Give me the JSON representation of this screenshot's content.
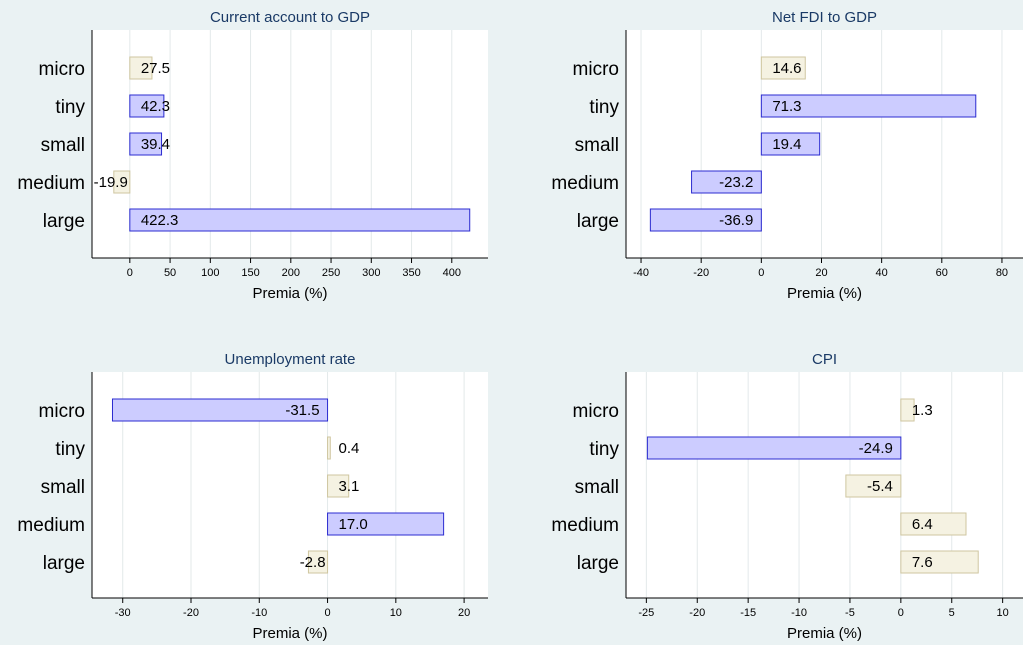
{
  "colors": {
    "background": "#eaf2f3",
    "plot_background": "#ffffff",
    "significant_fill": "#ccccff",
    "significant_stroke": "#2b2bd0",
    "insignificant_fill": "#f5f2e2",
    "insignificant_stroke": "#cfc6a0",
    "title": "#1a3a66"
  },
  "chart_data": [
    {
      "type": "bar",
      "orientation": "horizontal",
      "title": "Current account to GDP",
      "xlabel": "Premia (%)",
      "categories": [
        "micro",
        "tiny",
        "small",
        "medium",
        "large"
      ],
      "values": [
        27.5,
        42.3,
        39.4,
        -19.9,
        422.3
      ],
      "value_labels": [
        "27.5",
        "42.3",
        "39.4",
        "-19.9",
        "422.3"
      ],
      "significant": [
        false,
        true,
        true,
        false,
        true
      ],
      "xlim": [
        -47,
        445
      ],
      "xticks": [
        0,
        50,
        100,
        150,
        200,
        250,
        300,
        350,
        400
      ],
      "xtick_labels": [
        "0",
        "50",
        "100",
        "150",
        "200",
        "250",
        "300",
        "350",
        "400"
      ],
      "grid": true
    },
    {
      "type": "bar",
      "orientation": "horizontal",
      "title": "Net FDI to GDP",
      "xlabel": "Premia (%)",
      "categories": [
        "micro",
        "tiny",
        "small",
        "medium",
        "large"
      ],
      "values": [
        14.6,
        71.3,
        19.4,
        -23.2,
        -36.9
      ],
      "value_labels": [
        "14.6",
        "71.3",
        "19.4",
        "-23.2",
        "-36.9"
      ],
      "significant": [
        false,
        true,
        true,
        true,
        true
      ],
      "xlim": [
        -45,
        87
      ],
      "xticks": [
        -40,
        -20,
        0,
        20,
        40,
        60,
        80
      ],
      "xtick_labels": [
        "-40",
        "-20",
        "0",
        "20",
        "40",
        "60",
        "80"
      ],
      "grid": true
    },
    {
      "type": "bar",
      "orientation": "horizontal",
      "title": "Unemployment rate",
      "xlabel": "Premia (%)",
      "categories": [
        "micro",
        "tiny",
        "small",
        "medium",
        "large"
      ],
      "values": [
        -31.5,
        0.4,
        3.1,
        17.0,
        -2.8
      ],
      "value_labels": [
        "-31.5",
        "0.4",
        "3.1",
        "17.0",
        "-2.8"
      ],
      "significant": [
        true,
        false,
        false,
        true,
        false
      ],
      "xlim": [
        -34.5,
        23.5
      ],
      "xticks": [
        -30,
        -20,
        -10,
        0,
        10,
        20
      ],
      "xtick_labels": [
        "-30",
        "-20",
        "-10",
        "0",
        "10",
        "20"
      ],
      "grid": true
    },
    {
      "type": "bar",
      "orientation": "horizontal",
      "title": "CPI",
      "xlabel": "Premia (%)",
      "categories": [
        "micro",
        "tiny",
        "small",
        "medium",
        "large"
      ],
      "values": [
        1.3,
        -24.9,
        -5.4,
        6.4,
        7.6
      ],
      "value_labels": [
        "1.3",
        "-24.9",
        "-5.4",
        "6.4",
        "7.6"
      ],
      "significant": [
        false,
        true,
        false,
        false,
        false
      ],
      "xlim": [
        -27,
        12
      ],
      "xticks": [
        -25,
        -20,
        -15,
        -10,
        -5,
        0,
        5,
        10
      ],
      "xtick_labels": [
        "-25",
        "-20",
        "-15",
        "-10",
        "-5",
        "0",
        "5",
        "10"
      ],
      "grid": true
    }
  ]
}
